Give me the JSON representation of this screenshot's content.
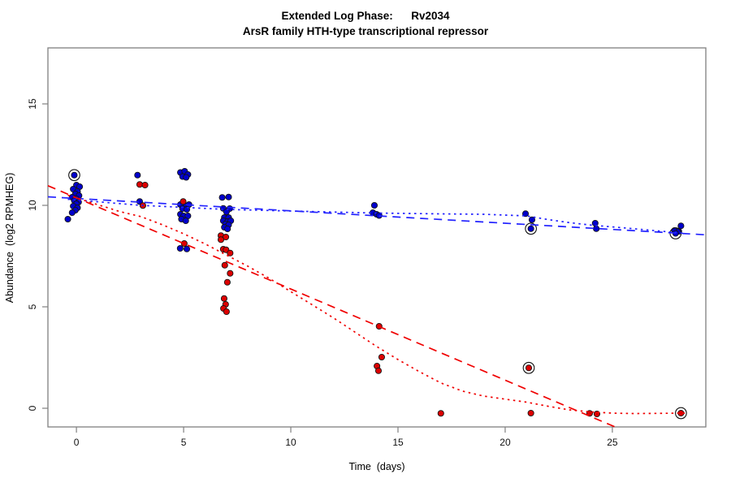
{
  "header": {
    "title_line1": "Extended Log Phase:      Rv2034",
    "title_line2": "ArsR family HTH-type transcriptional repressor"
  },
  "chart_data": {
    "type": "scatter",
    "title": "Extended Log Phase: Rv2034",
    "subtitle": "ArsR family HTH-type transcriptional repressor",
    "xlabel": "Time  (days)",
    "ylabel": "Abundance  (log2 RPMHEG)",
    "xlim": [
      -1.33,
      29.36
    ],
    "ylim": [
      -0.92,
      17.76
    ],
    "x_ticks": [
      0,
      5,
      10,
      15,
      20,
      25
    ],
    "y_ticks": [
      0,
      5,
      10,
      15
    ],
    "grid": false,
    "legend": "none",
    "series": [
      {
        "name": "blue",
        "color": "#0000CC",
        "points": [
          [
            0.0,
            11.0
          ],
          [
            0.15,
            10.92
          ],
          [
            -0.15,
            10.8
          ],
          [
            0.05,
            10.68
          ],
          [
            -0.05,
            10.56
          ],
          [
            0.12,
            10.48
          ],
          [
            -0.2,
            10.4
          ],
          [
            0.0,
            10.32
          ],
          [
            -0.1,
            10.24
          ],
          [
            0.1,
            10.16
          ],
          [
            0.0,
            10.08
          ],
          [
            -0.15,
            9.96
          ],
          [
            0.05,
            9.88
          ],
          [
            -0.05,
            9.76
          ],
          [
            -0.2,
            9.64
          ],
          [
            -0.4,
            9.32
          ],
          [
            2.85,
            11.49
          ],
          [
            2.95,
            10.19
          ],
          [
            4.85,
            11.62
          ],
          [
            5.05,
            11.68
          ],
          [
            5.2,
            11.52
          ],
          [
            4.95,
            11.42
          ],
          [
            5.12,
            11.38
          ],
          [
            4.85,
            10.04
          ],
          [
            5.1,
            9.96
          ],
          [
            5.25,
            10.04
          ],
          [
            4.95,
            9.84
          ],
          [
            5.15,
            9.8
          ],
          [
            4.85,
            9.56
          ],
          [
            5.0,
            9.48
          ],
          [
            5.2,
            9.48
          ],
          [
            4.9,
            9.32
          ],
          [
            5.1,
            9.24
          ],
          [
            4.84,
            7.88
          ],
          [
            5.15,
            7.85
          ],
          [
            6.8,
            10.39
          ],
          [
            7.1,
            10.41
          ],
          [
            6.85,
            9.85
          ],
          [
            7.15,
            9.84
          ],
          [
            7.0,
            9.68
          ],
          [
            6.9,
            9.4
          ],
          [
            7.1,
            9.4
          ],
          [
            6.85,
            9.24
          ],
          [
            7.05,
            9.2
          ],
          [
            7.2,
            9.24
          ],
          [
            6.95,
            9.08
          ],
          [
            7.1,
            9.04
          ],
          [
            6.9,
            8.92
          ],
          [
            7.05,
            8.84
          ],
          [
            13.9,
            10.0
          ],
          [
            13.83,
            9.64
          ],
          [
            14.0,
            9.56
          ],
          [
            14.12,
            9.5
          ],
          [
            20.95,
            9.59
          ],
          [
            21.25,
            9.29
          ],
          [
            24.2,
            9.12
          ],
          [
            24.25,
            8.85
          ],
          [
            28.2,
            8.99
          ],
          [
            27.9,
            8.76
          ],
          [
            28.1,
            8.72
          ]
        ],
        "circled_points": [
          [
            -0.1,
            11.49
          ],
          [
            21.2,
            8.85
          ],
          [
            27.95,
            8.62
          ]
        ]
      },
      {
        "name": "red",
        "color": "#DD0000",
        "points": [
          [
            2.95,
            11.03
          ],
          [
            3.2,
            11.0
          ],
          [
            3.1,
            9.99
          ],
          [
            4.98,
            10.19
          ],
          [
            5.03,
            8.12
          ],
          [
            6.74,
            8.51
          ],
          [
            6.97,
            8.44
          ],
          [
            6.74,
            8.31
          ],
          [
            6.85,
            7.84
          ],
          [
            6.98,
            7.81
          ],
          [
            7.17,
            7.65
          ],
          [
            6.92,
            7.05
          ],
          [
            7.17,
            6.65
          ],
          [
            7.04,
            6.21
          ],
          [
            6.89,
            5.41
          ],
          [
            6.96,
            5.12
          ],
          [
            6.86,
            4.92
          ],
          [
            7.0,
            4.76
          ],
          [
            14.12,
            4.04
          ],
          [
            14.24,
            2.52
          ],
          [
            14.02,
            2.08
          ],
          [
            14.09,
            1.85
          ],
          [
            17.0,
            -0.25
          ],
          [
            21.2,
            -0.24
          ],
          [
            23.94,
            -0.25
          ],
          [
            24.28,
            -0.28
          ]
        ],
        "circled_points": [
          [
            21.1,
            1.99
          ],
          [
            28.2,
            -0.24
          ]
        ]
      }
    ],
    "fits": [
      {
        "name": "blue-linear",
        "series": "blue",
        "style": "dashed",
        "color": "#2222FF",
        "points": [
          [
            -1.33,
            10.42
          ],
          [
            29.36,
            8.55
          ]
        ]
      },
      {
        "name": "blue-loess",
        "series": "blue",
        "style": "dotted",
        "color": "#2222FF",
        "points": [
          [
            -0.4,
            10.3
          ],
          [
            3,
            10.0
          ],
          [
            5,
            9.9
          ],
          [
            7,
            9.8
          ],
          [
            10,
            9.72
          ],
          [
            14,
            9.62
          ],
          [
            17,
            9.58
          ],
          [
            19,
            9.56
          ],
          [
            21,
            9.48
          ],
          [
            22,
            9.3
          ],
          [
            23,
            9.15
          ],
          [
            24,
            9.03
          ],
          [
            26,
            8.85
          ],
          [
            28.4,
            8.62
          ]
        ]
      },
      {
        "name": "red-linear",
        "series": "red",
        "style": "dashed",
        "color": "#F00000",
        "points": [
          [
            -1.33,
            10.97
          ],
          [
            25.2,
            -0.95
          ]
        ]
      },
      {
        "name": "red-loess",
        "series": "red",
        "style": "dotted",
        "color": "#F00000",
        "points": [
          [
            -0.4,
            10.5
          ],
          [
            2,
            9.7
          ],
          [
            3,
            9.45
          ],
          [
            4,
            9.05
          ],
          [
            5,
            8.6
          ],
          [
            6,
            8.1
          ],
          [
            7,
            7.55
          ],
          [
            8,
            7.0
          ],
          [
            9,
            6.4
          ],
          [
            10,
            5.75
          ],
          [
            11,
            5.1
          ],
          [
            12,
            4.45
          ],
          [
            13,
            3.75
          ],
          [
            14,
            3.05
          ],
          [
            15,
            2.4
          ],
          [
            16,
            1.8
          ],
          [
            17,
            1.25
          ],
          [
            18,
            0.85
          ],
          [
            19,
            0.6
          ],
          [
            20,
            0.45
          ],
          [
            21,
            0.3
          ],
          [
            22,
            0.1
          ],
          [
            23,
            -0.08
          ],
          [
            24,
            -0.18
          ],
          [
            25,
            -0.24
          ],
          [
            26,
            -0.26
          ],
          [
            27,
            -0.25
          ],
          [
            28.4,
            -0.24
          ]
        ]
      }
    ]
  }
}
